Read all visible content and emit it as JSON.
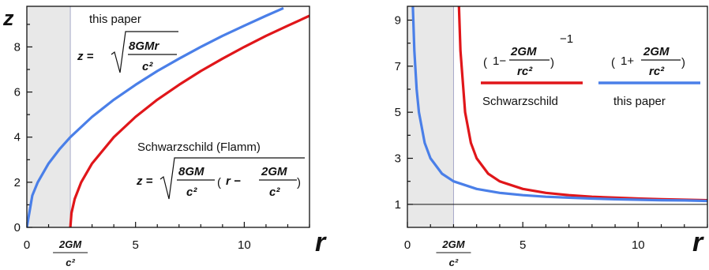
{
  "chart_data": [
    {
      "type": "line",
      "xlabel": "r",
      "ylabel": "z",
      "xlim": [
        0,
        13
      ],
      "ylim": [
        0,
        9.8
      ],
      "x_ticks": [
        {
          "value": 0,
          "label": "0"
        },
        {
          "value": 5,
          "label": "5"
        },
        {
          "value": 10,
          "label": "10"
        }
      ],
      "x_special_tick": {
        "value": 2,
        "num": "2GM",
        "den": "c²"
      },
      "y_ticks": [
        {
          "value": 0,
          "label": "0"
        },
        {
          "value": 2,
          "label": "2"
        },
        {
          "value": 4,
          "label": "4"
        },
        {
          "value": 6,
          "label": "6"
        },
        {
          "value": 8,
          "label": "8"
        }
      ],
      "shaded_region": [
        0,
        2
      ],
      "series": [
        {
          "name": "this paper",
          "color": "#4a7fe8",
          "formula": {
            "lhs": "z =",
            "num": "8GMr",
            "den": "c²"
          },
          "x": [
            0,
            0.25,
            0.5,
            1,
            1.5,
            2,
            3,
            4,
            5,
            6,
            7,
            8,
            9,
            10,
            11,
            11.8
          ],
          "y": [
            0,
            1.41,
            2.0,
            2.83,
            3.46,
            4.0,
            4.9,
            5.66,
            6.32,
            6.93,
            7.48,
            8.0,
            8.49,
            8.94,
            9.38,
            9.72
          ]
        },
        {
          "name": "Schwarzschild (Flamm)",
          "color": "#e0161a",
          "formula": {
            "lhs": "z =",
            "num": "8GM",
            "den": "c²",
            "inner_lhs": "r −",
            "inner_num": "2GM",
            "inner_den": "c²"
          },
          "x": [
            2,
            2.05,
            2.2,
            2.5,
            3,
            4,
            5,
            6,
            7,
            8,
            9,
            10,
            11,
            12,
            13
          ],
          "y": [
            0,
            0.63,
            1.26,
            2.0,
            2.83,
            4.0,
            4.9,
            5.66,
            6.32,
            6.93,
            7.48,
            8.0,
            8.49,
            8.94,
            9.38
          ]
        }
      ]
    },
    {
      "type": "line",
      "xlabel": "r",
      "ylabel": "",
      "xlim": [
        0,
        13
      ],
      "ylim": [
        0,
        9.6
      ],
      "x_ticks": [
        {
          "value": 0,
          "label": "0"
        },
        {
          "value": 5,
          "label": "5"
        },
        {
          "value": 10,
          "label": "10"
        }
      ],
      "x_special_tick": {
        "value": 2,
        "num": "2GM",
        "den": "c²"
      },
      "y_ticks": [
        {
          "value": 1,
          "label": "1"
        },
        {
          "value": 3,
          "label": "3"
        },
        {
          "value": 5,
          "label": "5"
        },
        {
          "value": 7,
          "label": "7"
        },
        {
          "value": 9,
          "label": "9"
        }
      ],
      "minor_y_ticks": [
        2,
        4,
        6,
        8
      ],
      "shaded_region": [
        0,
        2
      ],
      "reference_line_y": 1,
      "series": [
        {
          "name": "Schwarzschild",
          "color": "#e0161a",
          "formula": {
            "left": "1−",
            "num": "2GM",
            "den": "rc²",
            "exp": "−1"
          },
          "x": [
            2.23,
            2.3,
            2.5,
            2.75,
            3,
            3.5,
            4,
            5,
            6,
            7,
            8,
            9,
            10,
            11,
            12,
            13
          ],
          "y": [
            9.7,
            7.67,
            5.0,
            3.67,
            3.0,
            2.33,
            2.0,
            1.67,
            1.5,
            1.4,
            1.33,
            1.29,
            1.25,
            1.22,
            1.2,
            1.18
          ]
        },
        {
          "name": "this paper",
          "color": "#4a7fe8",
          "formula": {
            "left": "1+",
            "num": "2GM",
            "den": "rc²"
          },
          "x": [
            0.22,
            0.3,
            0.4,
            0.5,
            0.75,
            1,
            1.5,
            2,
            3,
            4,
            5,
            6,
            7,
            8,
            9,
            10,
            11,
            12,
            13
          ],
          "y": [
            10.1,
            7.67,
            6.0,
            5.0,
            3.67,
            3.0,
            2.33,
            2.0,
            1.67,
            1.5,
            1.4,
            1.33,
            1.29,
            1.25,
            1.22,
            1.2,
            1.18,
            1.17,
            1.15
          ]
        }
      ]
    }
  ]
}
